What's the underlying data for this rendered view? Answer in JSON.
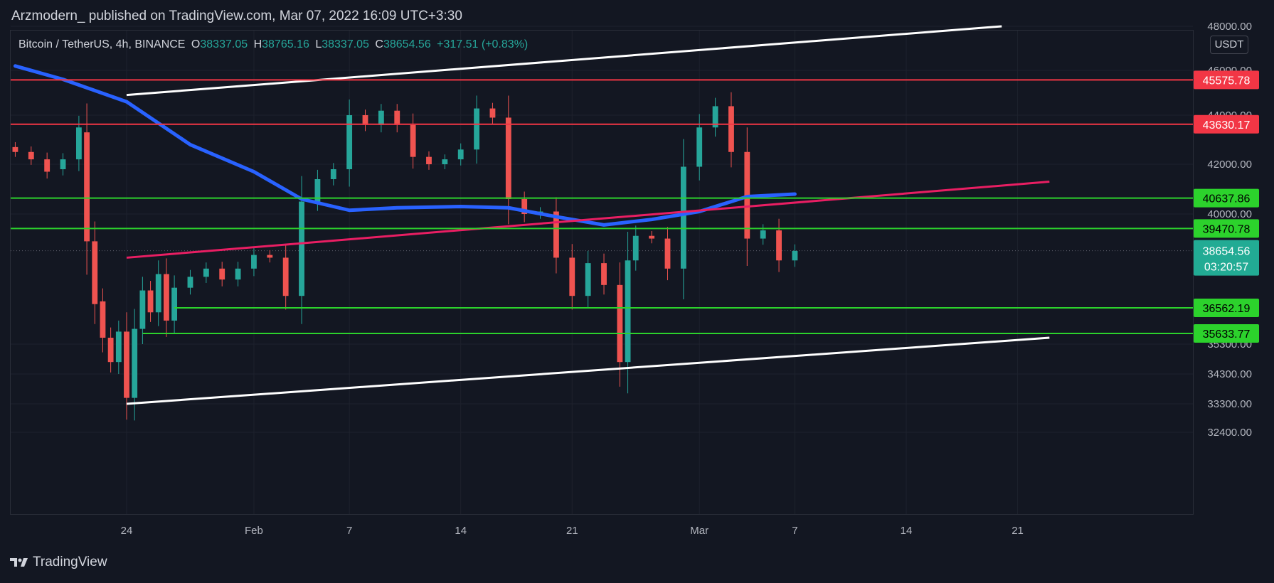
{
  "header": {
    "published_text": "Arzmodern_ published on TradingView.com, Mar 07, 2022 16:09 UTC+3:30"
  },
  "symbol": {
    "name": "Bitcoin / TetherUS, 4h, BINANCE",
    "open_label": "O",
    "open": "38337.05",
    "high_label": "H",
    "high": "38765.16",
    "low_label": "L",
    "low": "38337.05",
    "close_label": "C",
    "close": "38654.56",
    "change": "+317.51 (+0.83%)"
  },
  "currency": "USDT",
  "footer": {
    "logo_text": "TradingView"
  },
  "colors": {
    "background": "#131722",
    "grid": "#1e222d",
    "up": "#26a69a",
    "down": "#ef5350",
    "ma": "#2962ff",
    "red_level": "#f23645",
    "green_level": "#2cd22c",
    "channel": "#ffffff",
    "pink_trend": "#e91e63",
    "price_badge": "#22ab94"
  },
  "chart_data": {
    "type": "candlestick",
    "interval": "4h",
    "y_ticks": [
      {
        "price": 48000,
        "label": "48000.00"
      },
      {
        "price": 46000,
        "label": "46000.00"
      },
      {
        "price": 44000,
        "label": "44000.00"
      },
      {
        "price": 42000,
        "label": "42000.00"
      },
      {
        "price": 40000,
        "label": "40000.00"
      },
      {
        "price": 35300,
        "label": "35300.00"
      },
      {
        "price": 34300,
        "label": "34300.00"
      },
      {
        "price": 33300,
        "label": "33300.00"
      },
      {
        "price": 32400,
        "label": "32400.00"
      }
    ],
    "x_ticks": [
      {
        "date": "2022-01-24",
        "label": "24"
      },
      {
        "date": "2022-02-01",
        "label": "Feb"
      },
      {
        "date": "2022-02-07",
        "label": "7"
      },
      {
        "date": "2022-02-14",
        "label": "14"
      },
      {
        "date": "2022-02-21",
        "label": "21"
      },
      {
        "date": "2022-03-01",
        "label": "Mar"
      },
      {
        "date": "2022-03-07",
        "label": "7"
      },
      {
        "date": "2022-03-14",
        "label": "14"
      },
      {
        "date": "2022-03-21",
        "label": "21"
      }
    ],
    "horizontal_levels": [
      {
        "price": 45575.78,
        "label": "45575.78",
        "color": "red"
      },
      {
        "price": 43630.17,
        "label": "43630.17",
        "color": "red"
      },
      {
        "price": 40637.86,
        "label": "40637.86",
        "color": "green"
      },
      {
        "price": 39470.78,
        "label": "39470.78",
        "color": "green"
      },
      {
        "price": 36562.19,
        "label": "36562.19",
        "color": "green",
        "start_date": "2022-01-27"
      },
      {
        "price": 35633.77,
        "label": "35633.77",
        "color": "green",
        "start_date": "2022-01-25"
      }
    ],
    "current_price": {
      "price": 38654.56,
      "label": "38654.56",
      "countdown": "03:20:57"
    },
    "trend_lines": [
      {
        "name": "upper-channel",
        "color": "white",
        "points": [
          [
            "2022-01-24",
            44900
          ],
          [
            "2022-03-20",
            48000
          ]
        ]
      },
      {
        "name": "lower-channel",
        "color": "white",
        "points": [
          [
            "2022-01-24",
            33300
          ],
          [
            "2022-03-23",
            35500
          ]
        ]
      },
      {
        "name": "pink-trend",
        "color": "pink",
        "points": [
          [
            "2022-01-24",
            38400
          ],
          [
            "2022-03-23",
            41300
          ]
        ]
      }
    ],
    "moving_average": [
      [
        "2022-01-17",
        46200
      ],
      [
        "2022-01-20",
        45600
      ],
      [
        "2022-01-24",
        44600
      ],
      [
        "2022-01-28",
        42800
      ],
      [
        "2022-02-01",
        41700
      ],
      [
        "2022-02-04",
        40600
      ],
      [
        "2022-02-07",
        40150
      ],
      [
        "2022-02-10",
        40250
      ],
      [
        "2022-02-14",
        40300
      ],
      [
        "2022-02-17",
        40250
      ],
      [
        "2022-02-20",
        39900
      ],
      [
        "2022-02-23",
        39600
      ],
      [
        "2022-02-26",
        39800
      ],
      [
        "2022-03-01",
        40100
      ],
      [
        "2022-03-04",
        40700
      ],
      [
        "2022-03-07",
        40800
      ]
    ],
    "candles": [
      [
        "2022-01-17",
        42700,
        42500
      ],
      [
        "2022-01-18",
        42500,
        42200
      ],
      [
        "2022-01-19",
        42200,
        41700
      ],
      [
        "2022-01-20",
        41800,
        42200
      ],
      [
        "2022-01-21",
        42200,
        43500
      ],
      [
        "2022-01-21T12",
        43300,
        39000
      ],
      [
        "2022-01-22",
        39000,
        36700
      ],
      [
        "2022-01-22T12",
        36800,
        35500
      ],
      [
        "2022-01-23",
        35500,
        34700
      ],
      [
        "2022-01-23T12",
        34700,
        35700
      ],
      [
        "2022-01-24",
        35700,
        33500
      ],
      [
        "2022-01-24T12",
        33500,
        35800
      ],
      [
        "2022-01-25",
        35800,
        37200
      ],
      [
        "2022-01-25T12",
        37200,
        36400
      ],
      [
        "2022-01-26",
        36400,
        37800
      ],
      [
        "2022-01-26T12",
        37800,
        36100
      ],
      [
        "2022-01-27",
        36100,
        37300
      ],
      [
        "2022-01-28",
        37300,
        37700
      ],
      [
        "2022-01-29",
        37700,
        38000
      ],
      [
        "2022-01-30",
        38000,
        37600
      ],
      [
        "2022-01-31",
        37600,
        38000
      ],
      [
        "2022-02-01",
        38000,
        38500
      ],
      [
        "2022-02-02",
        38500,
        38400
      ],
      [
        "2022-02-03",
        38400,
        37000
      ],
      [
        "2022-02-04",
        37000,
        40500
      ],
      [
        "2022-02-05",
        40500,
        41400
      ],
      [
        "2022-02-06",
        41400,
        41800
      ],
      [
        "2022-02-07",
        41800,
        44000
      ],
      [
        "2022-02-08",
        44000,
        43600
      ],
      [
        "2022-02-09",
        43600,
        44200
      ],
      [
        "2022-02-10",
        44200,
        43600
      ],
      [
        "2022-02-11",
        43600,
        42300
      ],
      [
        "2022-02-12",
        42300,
        42000
      ],
      [
        "2022-02-13",
        42000,
        42200
      ],
      [
        "2022-02-14",
        42200,
        42600
      ],
      [
        "2022-02-15",
        42600,
        44300
      ],
      [
        "2022-02-16",
        44300,
        43900
      ],
      [
        "2022-02-17",
        43900,
        40600
      ],
      [
        "2022-02-18",
        40600,
        40000
      ],
      [
        "2022-02-19",
        40000,
        40100
      ],
      [
        "2022-02-20",
        40100,
        38400
      ],
      [
        "2022-02-21",
        38400,
        37000
      ],
      [
        "2022-02-22",
        37000,
        38200
      ],
      [
        "2022-02-23",
        38200,
        37400
      ],
      [
        "2022-02-24",
        37400,
        34700
      ],
      [
        "2022-02-24T12",
        34700,
        38300
      ],
      [
        "2022-02-25",
        38300,
        39200
      ],
      [
        "2022-02-26",
        39200,
        39100
      ],
      [
        "2022-02-27",
        39100,
        38000
      ],
      [
        "2022-02-28",
        38000,
        41900
      ],
      [
        "2022-03-01",
        41900,
        43500
      ],
      [
        "2022-03-02",
        43500,
        44400
      ],
      [
        "2022-03-03",
        44400,
        42500
      ],
      [
        "2022-03-04",
        42500,
        39100
      ],
      [
        "2022-03-05",
        39100,
        39400
      ],
      [
        "2022-03-06",
        39400,
        38300
      ],
      [
        "2022-03-07",
        38300,
        38650
      ]
    ]
  }
}
